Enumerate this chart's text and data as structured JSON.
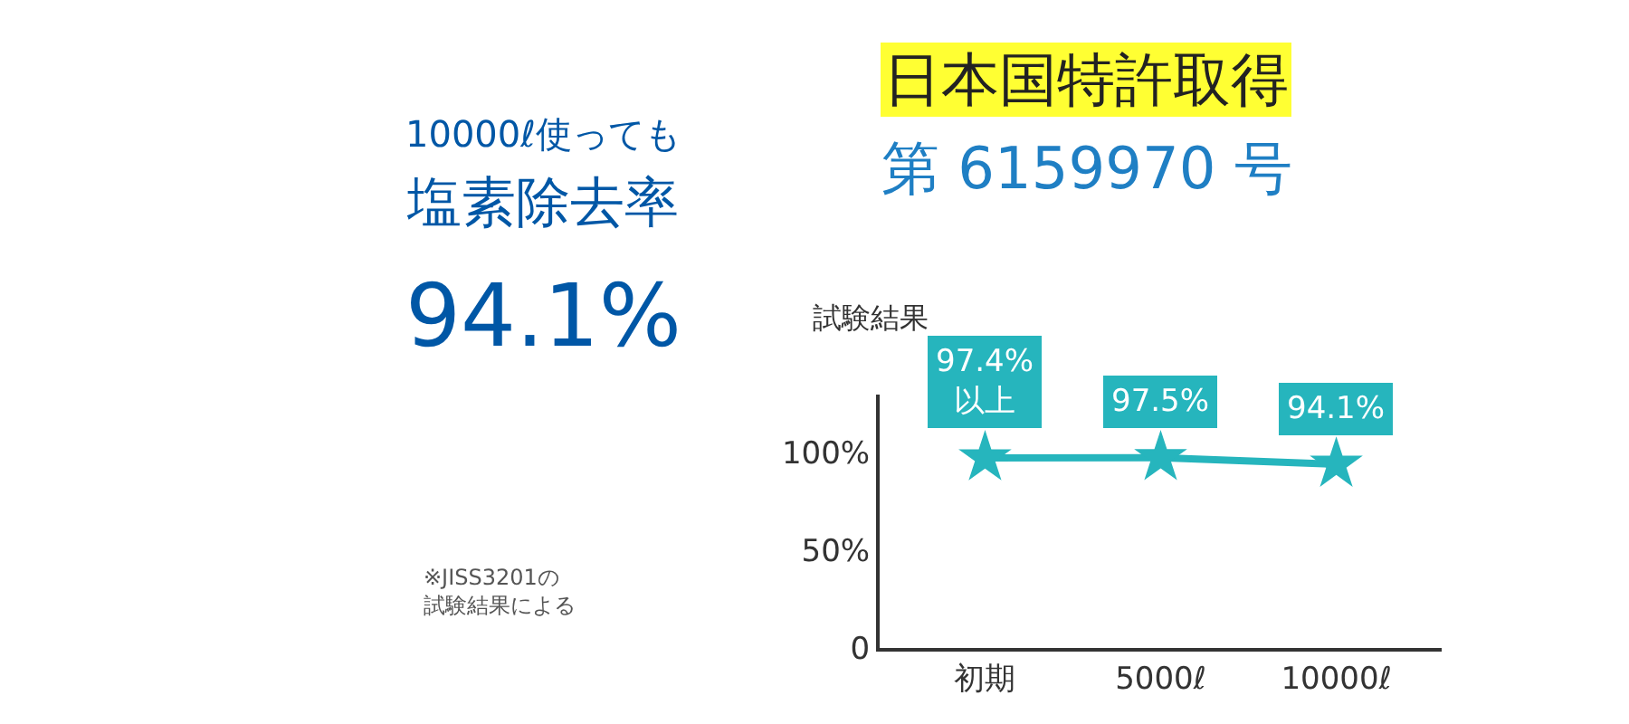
{
  "chart_data": {
    "type": "line",
    "title": "試験結果",
    "categories": [
      "初期",
      "5000ℓ",
      "10000ℓ"
    ],
    "series": [
      {
        "color": "#26b5bd",
        "values": [
          97.4,
          97.5,
          94.1
        ],
        "value_labels": [
          "97.4%\n以上",
          "97.5%",
          "94.1%"
        ]
      }
    ],
    "ylim": [
      0,
      130
    ],
    "yticks": [
      {
        "value": 0,
        "label": "0"
      },
      {
        "value": 50,
        "label": "50%"
      },
      {
        "value": 100,
        "label": "100%"
      }
    ],
    "marker": "star",
    "line_style": "solid",
    "grid": false,
    "legend": false,
    "annotations": [
      "10000ℓ使っても",
      "塩素除去率",
      "94.1%",
      "日本国特許取得",
      "第 6159970 号",
      "※JISS3201の試験結果による"
    ]
  }
}
